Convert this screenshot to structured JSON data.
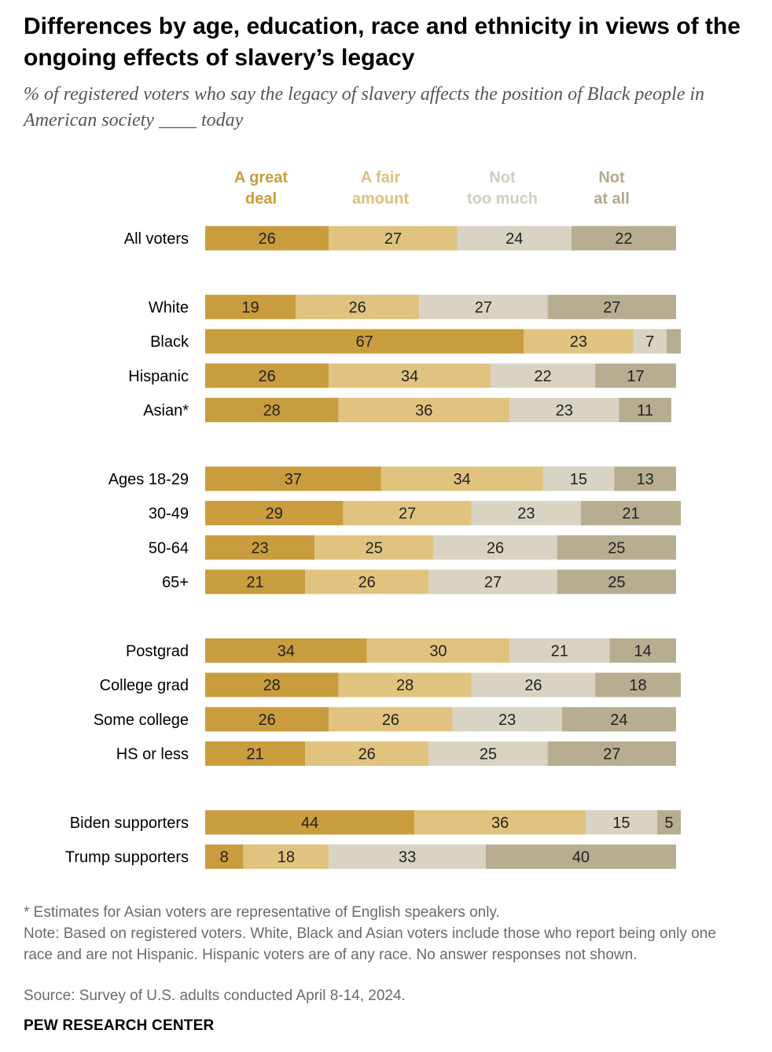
{
  "title": "Differences by age, education, race and ethnicity in views of the ongoing effects of slavery’s legacy",
  "subtitle": "% of registered voters who say the legacy of slavery affects the position of Black people in American society ____ today",
  "colors": {
    "great_deal": "#c99c3d",
    "fair_amount": "#e0c37f",
    "not_too_much": "#d8d3c2",
    "not_at_all": "#b7ad91",
    "header_great_deal": "#c99c3d",
    "header_fair_amount": "#dcc07f",
    "header_not_too_much": "#d2cdbd",
    "header_not_at_all": "#b3aa90"
  },
  "chart_data": {
    "type": "bar",
    "orientation": "horizontal",
    "stacked": true,
    "xlim": [
      0,
      100
    ],
    "series": [
      {
        "name": "A great deal",
        "header_lines": [
          "A great",
          "deal"
        ],
        "color_key": "great_deal"
      },
      {
        "name": "A fair amount",
        "header_lines": [
          "A fair",
          "amount"
        ],
        "color_key": "fair_amount"
      },
      {
        "name": "Not too much",
        "header_lines": [
          "Not",
          "too much"
        ],
        "color_key": "not_too_much"
      },
      {
        "name": "Not at all",
        "header_lines": [
          "Not",
          "at all"
        ],
        "color_key": "not_at_all"
      }
    ],
    "groups": [
      {
        "rows": [
          {
            "label": "All voters",
            "values": [
              26,
              27,
              24,
              22
            ]
          }
        ]
      },
      {
        "rows": [
          {
            "label": "White",
            "values": [
              19,
              26,
              27,
              27
            ]
          },
          {
            "label": "Black",
            "values": [
              67,
              23,
              7,
              3
            ],
            "value_labels": [
              "67",
              "23",
              "7",
              ""
            ]
          },
          {
            "label": "Hispanic",
            "values": [
              26,
              34,
              22,
              17
            ]
          },
          {
            "label": "Asian*",
            "values": [
              28,
              36,
              23,
              11
            ]
          }
        ]
      },
      {
        "rows": [
          {
            "label": "Ages 18-29",
            "values": [
              37,
              34,
              15,
              13
            ]
          },
          {
            "label": "30-49",
            "values": [
              29,
              27,
              23,
              21
            ]
          },
          {
            "label": "50-64",
            "values": [
              23,
              25,
              26,
              25
            ]
          },
          {
            "label": "65+",
            "values": [
              21,
              26,
              27,
              25
            ]
          }
        ]
      },
      {
        "rows": [
          {
            "label": "Postgrad",
            "values": [
              34,
              30,
              21,
              14
            ]
          },
          {
            "label": "College grad",
            "values": [
              28,
              28,
              26,
              18
            ]
          },
          {
            "label": "Some college",
            "values": [
              26,
              26,
              23,
              24
            ]
          },
          {
            "label": "HS or less",
            "values": [
              21,
              26,
              25,
              27
            ]
          }
        ]
      },
      {
        "rows": [
          {
            "label": "Biden supporters",
            "values": [
              44,
              36,
              15,
              5
            ]
          },
          {
            "label": "Trump supporters",
            "values": [
              8,
              18,
              33,
              40
            ]
          }
        ]
      }
    ]
  },
  "notes": {
    "asterisk": "* Estimates for Asian voters are representative of English speakers only.",
    "main": "Note: Based on registered voters. White, Black and Asian voters include those who report being only one race and are not Hispanic. Hispanic voters are of any race. No answer responses not shown.",
    "source": "Source: Survey of U.S. adults conducted April 8-14, 2024."
  },
  "org": "PEW RESEARCH CENTER"
}
